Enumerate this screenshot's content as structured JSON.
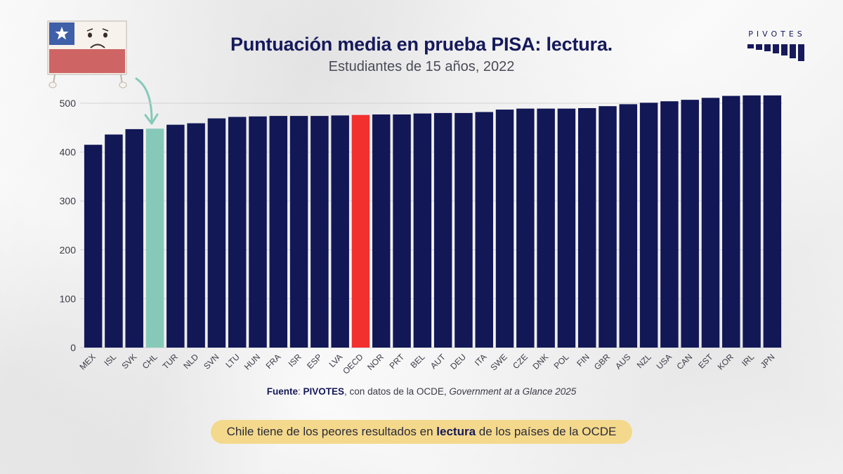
{
  "header": {
    "title": "Puntuación media en prueba PISA: lectura.",
    "subtitle": "Estudiantes de 15 años, 2022"
  },
  "logo": {
    "text": "PIVOTES"
  },
  "footer": {
    "source_label": "Fuente",
    "source_sep": ": ",
    "source_org": "PIVOTES",
    "source_text": ", con datos de la OCDE, ",
    "source_pub": "Government at a Glance 2025"
  },
  "callout": {
    "pre": "Chile tiene de los peores resultados en ",
    "bold": "lectura",
    "post": " de los países de la OCDE"
  },
  "colors": {
    "bar": "#121756",
    "highlight_chile": "#86c9b8",
    "highlight_oecd": "#f2302e",
    "accent_text": "#16195a"
  },
  "icons": {
    "flag": "chile-flag-sad-face-icon",
    "arrow": "curved-arrow-icon"
  },
  "chart_data": {
    "type": "bar",
    "title": "Puntuación media en prueba PISA: lectura.",
    "subtitle": "Estudiantes de 15 años, 2022",
    "xlabel": "",
    "ylabel": "",
    "ylim": [
      0,
      500
    ],
    "yticks": [
      0,
      100,
      200,
      300,
      400,
      500
    ],
    "grid": true,
    "categories": [
      "MEX",
      "ISL",
      "SVK",
      "CHL",
      "TUR",
      "NLD",
      "SVN",
      "LTU",
      "HUN",
      "FRA",
      "ISR",
      "ESP",
      "LVA",
      "OECD",
      "NOR",
      "PRT",
      "BEL",
      "AUT",
      "DEU",
      "ITA",
      "SWE",
      "CZE",
      "DNK",
      "POL",
      "FIN",
      "GBR",
      "AUS",
      "NZL",
      "USA",
      "CAN",
      "EST",
      "KOR",
      "IRL",
      "JPN"
    ],
    "values": [
      415,
      436,
      447,
      448,
      456,
      459,
      469,
      472,
      473,
      474,
      474,
      474,
      475,
      476,
      477,
      477,
      479,
      480,
      480,
      482,
      487,
      489,
      489,
      489,
      490,
      494,
      498,
      501,
      504,
      507,
      511,
      515,
      516,
      516
    ],
    "highlights": {
      "CHL": "#86c9b8",
      "OECD": "#f2302e"
    }
  }
}
